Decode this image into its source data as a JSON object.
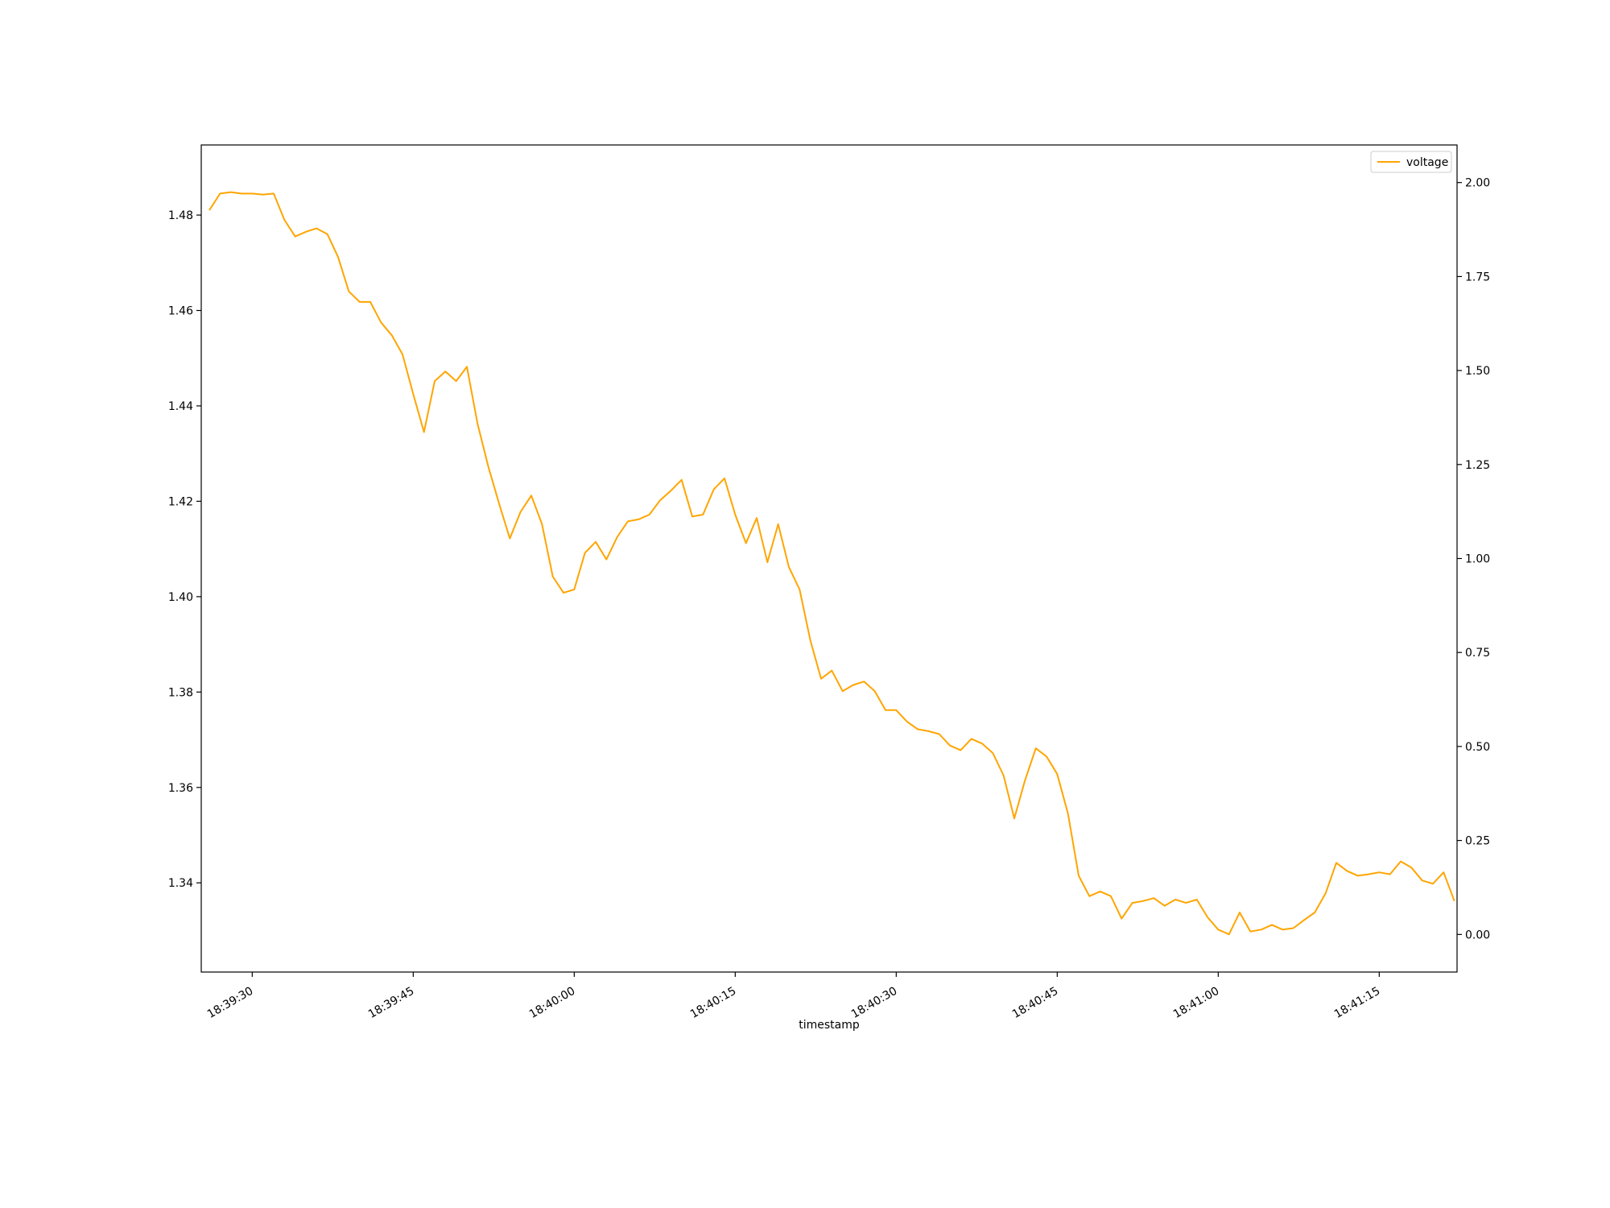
{
  "chart_data": {
    "type": "line",
    "title": "",
    "xlabel": "timestamp",
    "ylabel": "",
    "y2label": "",
    "grid": false,
    "legend": {
      "placement": "top-right",
      "entries": [
        "voltage"
      ]
    },
    "x_range": [
      "18:39:26",
      "18:41:22"
    ],
    "x_ticks": [
      "18:39:30",
      "18:39:45",
      "18:40:00",
      "18:40:15",
      "18:40:30",
      "18:40:45",
      "18:41:00",
      "18:41:15"
    ],
    "y_range": [
      1.3213,
      1.4947
    ],
    "y_ticks": [
      "1.34",
      "1.36",
      "1.38",
      "1.40",
      "1.42",
      "1.44",
      "1.46",
      "1.48"
    ],
    "y2_range": [
      -0.1,
      2.1
    ],
    "y2_ticks": [
      "0.00",
      "0.25",
      "0.50",
      "0.75",
      "1.00",
      "1.25",
      "1.50",
      "1.75",
      "2.00"
    ],
    "colors": {
      "voltage": "#ffa500",
      "axes": "#000000",
      "background": "#ffffff"
    },
    "series": [
      {
        "name": "voltage",
        "axis": "left",
        "points": [
          [
            "18:39:26",
            1.481
          ],
          [
            "18:39:27",
            1.4845
          ],
          [
            "18:39:28",
            1.4848
          ],
          [
            "18:39:29",
            1.4845
          ],
          [
            "18:39:30",
            1.4845
          ],
          [
            "18:39:31",
            1.4843
          ],
          [
            "18:39:32",
            1.4845
          ],
          [
            "18:39:33",
            1.479
          ],
          [
            "18:39:34",
            1.4755
          ],
          [
            "18:39:35",
            1.4765
          ],
          [
            "18:39:36",
            1.4772
          ],
          [
            "18:39:37",
            1.476
          ],
          [
            "18:39:38",
            1.4712
          ],
          [
            "18:39:39",
            1.464
          ],
          [
            "18:39:40",
            1.4618
          ],
          [
            "18:39:41",
            1.4618
          ],
          [
            "18:39:42",
            1.4575
          ],
          [
            "18:39:43",
            1.4548
          ],
          [
            "18:39:44",
            1.4508
          ],
          [
            "18:39:45",
            1.4425
          ],
          [
            "18:39:46",
            1.4345
          ],
          [
            "18:39:47",
            1.4452
          ],
          [
            "18:39:48",
            1.4472
          ],
          [
            "18:39:49",
            1.4452
          ],
          [
            "18:39:50",
            1.4482
          ],
          [
            "18:39:51",
            1.4362
          ],
          [
            "18:39:52",
            1.4272
          ],
          [
            "18:39:53",
            1.4195
          ],
          [
            "18:39:54",
            1.4122
          ],
          [
            "18:39:55",
            1.4178
          ],
          [
            "18:39:56",
            1.4212
          ],
          [
            "18:39:57",
            1.4152
          ],
          [
            "18:39:58",
            1.4042
          ],
          [
            "18:39:59",
            1.4008
          ],
          [
            "18:40:00",
            1.4015
          ],
          [
            "18:40:01",
            1.4092
          ],
          [
            "18:40:02",
            1.4115
          ],
          [
            "18:40:03",
            1.4078
          ],
          [
            "18:40:04",
            1.4125
          ],
          [
            "18:40:05",
            1.4158
          ],
          [
            "18:40:06",
            1.4162
          ],
          [
            "18:40:07",
            1.4172
          ],
          [
            "18:40:08",
            1.4202
          ],
          [
            "18:40:09",
            1.4222
          ],
          [
            "18:40:10",
            1.4245
          ],
          [
            "18:40:11",
            1.4168
          ],
          [
            "18:40:12",
            1.4172
          ],
          [
            "18:40:13",
            1.4225
          ],
          [
            "18:40:14",
            1.4248
          ],
          [
            "18:40:15",
            1.4172
          ],
          [
            "18:40:16",
            1.4112
          ],
          [
            "18:40:17",
            1.4165
          ],
          [
            "18:40:18",
            1.4072
          ],
          [
            "18:40:19",
            1.4152
          ],
          [
            "18:40:20",
            1.4062
          ],
          [
            "18:40:21",
            1.4015
          ],
          [
            "18:40:22",
            1.3908
          ],
          [
            "18:40:23",
            1.3828
          ],
          [
            "18:40:24",
            1.3845
          ],
          [
            "18:40:25",
            1.3802
          ],
          [
            "18:40:26",
            1.3815
          ],
          [
            "18:40:27",
            1.3822
          ],
          [
            "18:40:28",
            1.3802
          ],
          [
            "18:40:29",
            1.3762
          ],
          [
            "18:40:30",
            1.3762
          ],
          [
            "18:40:31",
            1.3738
          ],
          [
            "18:40:32",
            1.3722
          ],
          [
            "18:40:33",
            1.3718
          ],
          [
            "18:40:34",
            1.3712
          ],
          [
            "18:40:35",
            1.3688
          ],
          [
            "18:40:36",
            1.3678
          ],
          [
            "18:40:37",
            1.3702
          ],
          [
            "18:40:38",
            1.3692
          ],
          [
            "18:40:39",
            1.3672
          ],
          [
            "18:40:40",
            1.3625
          ],
          [
            "18:40:41",
            1.3535
          ],
          [
            "18:40:42",
            1.3615
          ],
          [
            "18:40:43",
            1.3682
          ],
          [
            "18:40:44",
            1.3665
          ],
          [
            "18:40:45",
            1.3628
          ],
          [
            "18:40:46",
            1.3545
          ],
          [
            "18:40:47",
            1.3415
          ],
          [
            "18:40:48",
            1.3372
          ],
          [
            "18:40:49",
            1.3382
          ],
          [
            "18:40:50",
            1.3372
          ],
          [
            "18:40:51",
            1.3325
          ],
          [
            "18:40:52",
            1.3358
          ],
          [
            "18:40:53",
            1.3362
          ],
          [
            "18:40:54",
            1.3368
          ],
          [
            "18:40:55",
            1.3352
          ],
          [
            "18:40:56",
            1.3365
          ],
          [
            "18:40:57",
            1.3358
          ],
          [
            "18:40:58",
            1.3365
          ],
          [
            "18:40:59",
            1.3328
          ],
          [
            "18:41:00",
            1.3302
          ],
          [
            "18:41:01",
            1.3292
          ],
          [
            "18:41:02",
            1.3338
          ],
          [
            "18:41:03",
            1.3298
          ],
          [
            "18:41:04",
            1.3302
          ],
          [
            "18:41:05",
            1.3312
          ],
          [
            "18:41:06",
            1.3302
          ],
          [
            "18:41:07",
            1.3305
          ],
          [
            "18:41:08",
            1.3322
          ],
          [
            "18:41:09",
            1.3338
          ],
          [
            "18:41:10",
            1.3378
          ],
          [
            "18:41:11",
            1.3442
          ],
          [
            "18:41:12",
            1.3425
          ],
          [
            "18:41:13",
            1.3415
          ],
          [
            "18:41:14",
            1.3418
          ],
          [
            "18:41:15",
            1.3422
          ],
          [
            "18:41:16",
            1.3418
          ],
          [
            "18:41:17",
            1.3445
          ],
          [
            "18:41:18",
            1.3432
          ],
          [
            "18:41:19",
            1.3405
          ],
          [
            "18:41:20",
            1.3398
          ],
          [
            "18:41:21",
            1.3422
          ],
          [
            "18:41:22",
            1.3362
          ]
        ]
      }
    ]
  }
}
